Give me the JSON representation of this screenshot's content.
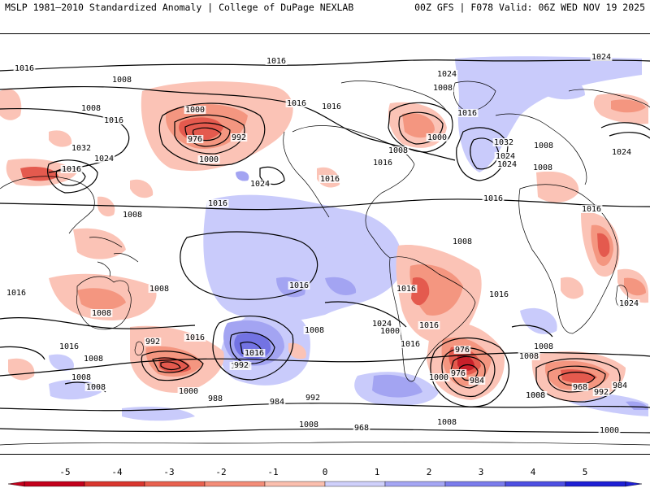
{
  "header": {
    "title_left": "MSLP 1981–2010 Standardized Anomaly | College of DuPage NEXLAB",
    "title_right": "00Z GFS | F078 Valid: 06Z WED NOV 19 2025"
  },
  "colorbar": {
    "ticks": [
      "-5",
      "-4",
      "-3",
      "-2",
      "-1",
      "0",
      "1",
      "2",
      "3",
      "4",
      "5"
    ],
    "colors": [
      "#c3001b",
      "#d9362e",
      "#e9614f",
      "#f48d78",
      "#fbbfae",
      "#ffffff",
      "#cfd0fb",
      "#a5a6f4",
      "#7b7cec",
      "#4e4fe2",
      "#1e1fd4"
    ]
  },
  "map": {
    "colors": {
      "pos1": "#c9cbfb",
      "pos2": "#a3a4f2",
      "pos3": "#7373e3",
      "neg1": "#fbc3b6",
      "neg2": "#f49680",
      "neg3": "#e45a4e",
      "neg4": "#c9202a",
      "contour": "#000000",
      "coast": "#000000"
    },
    "isobar_labels": [
      "1016",
      "1016",
      "1024",
      "1008",
      "1008",
      "1024",
      "1008",
      "1016",
      "1016",
      "1000",
      "1016",
      "1016",
      "1024",
      "1032",
      "1016",
      "1032",
      "1024",
      "1008",
      "1024",
      "976",
      "992",
      "1000",
      "1000",
      "1016",
      "1008",
      "1008",
      "1016",
      "1024",
      "1024",
      "1016",
      "1016",
      "1016",
      "1008",
      "1016",
      "1008",
      "1008",
      "1008",
      "1016",
      "1016",
      "1024",
      "1016",
      "1008",
      "1016",
      "1016",
      "1016",
      "1016",
      "1008",
      "1008",
      "1016",
      "992",
      "1000",
      "1000",
      "1008",
      "1008",
      "976",
      "968",
      "988",
      "1000",
      "992",
      "984",
      "992",
      "976",
      "984",
      "1000",
      "1008",
      "968",
      "984",
      "992",
      "1008",
      "1000",
      "1008",
      "1000",
      "1008",
      "984",
      "1024",
      "1024"
    ]
  }
}
